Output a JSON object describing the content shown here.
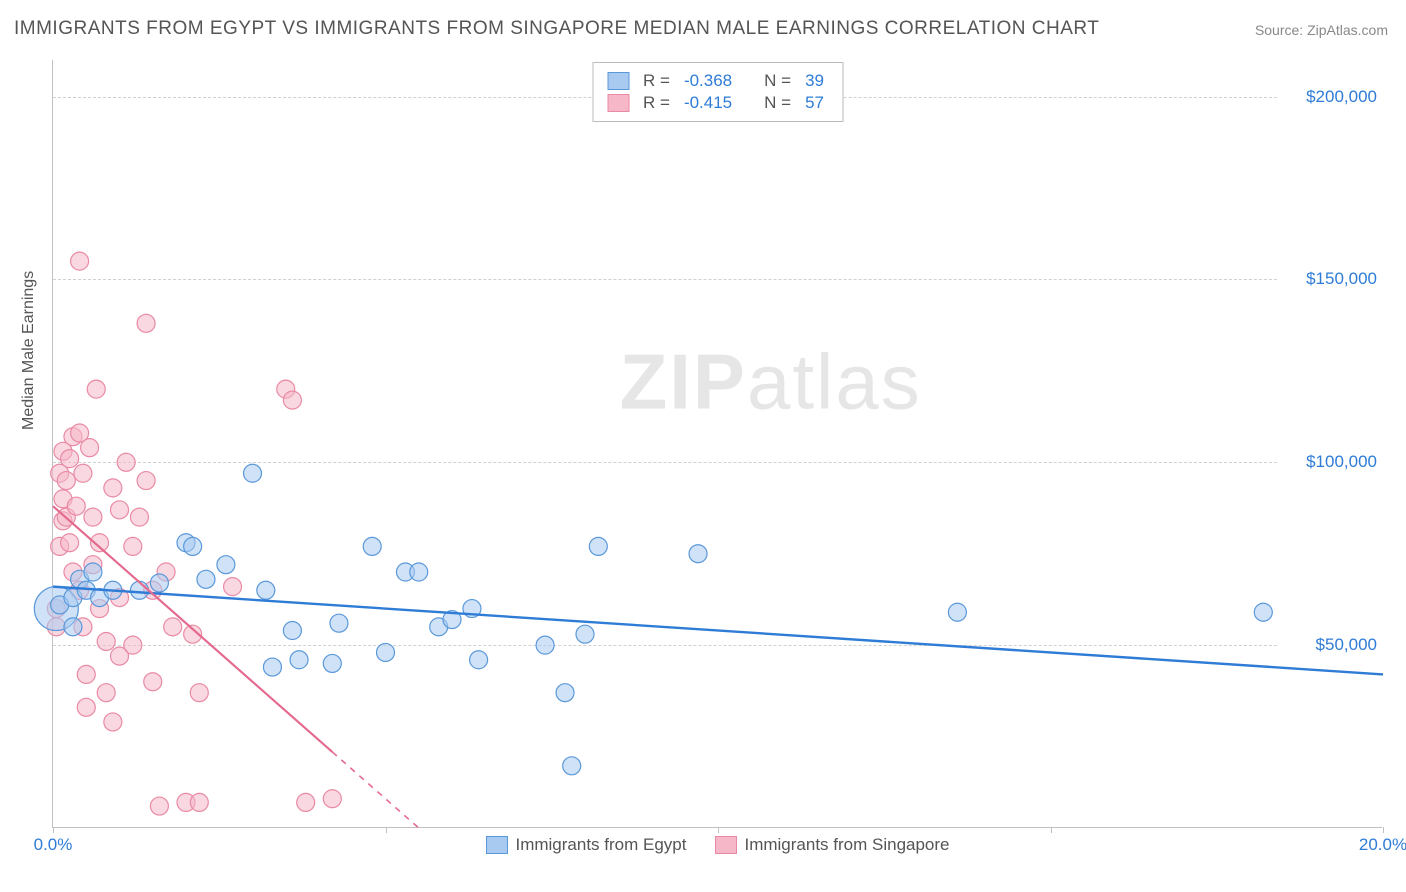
{
  "title": "IMMIGRANTS FROM EGYPT VS IMMIGRANTS FROM SINGAPORE MEDIAN MALE EARNINGS CORRELATION CHART",
  "source_label": "Source:",
  "source_name": "ZipAtlas.com",
  "ylabel": "Median Male Earnings",
  "watermark_a": "ZIP",
  "watermark_b": "atlas",
  "chart": {
    "type": "scatter",
    "xlim": [
      0,
      20
    ],
    "ylim": [
      0,
      210000
    ],
    "x_ticks": [
      0,
      5,
      10,
      15,
      20
    ],
    "x_tick_labels": [
      "0.0%",
      "",
      "",
      "",
      "20.0%"
    ],
    "y_ticks": [
      50000,
      100000,
      150000,
      200000
    ],
    "y_tick_labels": [
      "$50,000",
      "$100,000",
      "$150,000",
      "$200,000"
    ],
    "grid_color": "#d0d0d0",
    "axis_color": "#c0c0c0",
    "bg": "#ffffff",
    "series": [
      {
        "name": "Immigrants from Egypt",
        "fill": "#a8caf0",
        "stroke": "#5a98da",
        "line_color": "#2e7cd6",
        "marker_r": 9,
        "fill_opacity": 0.55,
        "R": "-0.368",
        "N": "39",
        "trend": {
          "x1": 0,
          "y1": 66000,
          "x2": 20,
          "y2": 42000
        },
        "points": [
          [
            0.1,
            61000
          ],
          [
            0.3,
            63000
          ],
          [
            0.3,
            55000
          ],
          [
            0.4,
            68000
          ],
          [
            0.5,
            65000
          ],
          [
            0.6,
            70000
          ],
          [
            0.7,
            63000
          ],
          [
            0.9,
            65000
          ],
          [
            1.3,
            65000
          ],
          [
            1.6,
            67000
          ],
          [
            2.0,
            78000
          ],
          [
            2.1,
            77000
          ],
          [
            2.3,
            68000
          ],
          [
            2.6,
            72000
          ],
          [
            3.0,
            97000
          ],
          [
            3.2,
            65000
          ],
          [
            3.3,
            44000
          ],
          [
            3.6,
            54000
          ],
          [
            3.7,
            46000
          ],
          [
            4.2,
            45000
          ],
          [
            4.3,
            56000
          ],
          [
            4.8,
            77000
          ],
          [
            5.0,
            48000
          ],
          [
            5.3,
            70000
          ],
          [
            5.5,
            70000
          ],
          [
            5.8,
            55000
          ],
          [
            6.0,
            57000
          ],
          [
            6.3,
            60000
          ],
          [
            6.4,
            46000
          ],
          [
            7.4,
            50000
          ],
          [
            7.7,
            37000
          ],
          [
            7.8,
            17000
          ],
          [
            8.0,
            53000
          ],
          [
            8.2,
            77000
          ],
          [
            9.7,
            75000
          ],
          [
            13.6,
            59000
          ],
          [
            18.2,
            59000
          ]
        ],
        "big_point": [
          0.05,
          60000,
          22
        ]
      },
      {
        "name": "Immigrants from Singapore",
        "fill": "#f6b8c8",
        "stroke": "#e98aa4",
        "line_color": "#e46a8e",
        "marker_r": 9,
        "fill_opacity": 0.55,
        "R": "-0.415",
        "N": "57",
        "trend": {
          "x1": 0,
          "y1": 88000,
          "x2": 5.5,
          "y2": 0
        },
        "trend_dash_after": 4.2,
        "points": [
          [
            0.05,
            60000
          ],
          [
            0.05,
            55000
          ],
          [
            0.1,
            77000
          ],
          [
            0.1,
            97000
          ],
          [
            0.15,
            103000
          ],
          [
            0.15,
            84000
          ],
          [
            0.15,
            90000
          ],
          [
            0.2,
            85000
          ],
          [
            0.2,
            95000
          ],
          [
            0.25,
            78000
          ],
          [
            0.25,
            101000
          ],
          [
            0.3,
            70000
          ],
          [
            0.3,
            107000
          ],
          [
            0.35,
            88000
          ],
          [
            0.4,
            155000
          ],
          [
            0.4,
            108000
          ],
          [
            0.4,
            65000
          ],
          [
            0.45,
            97000
          ],
          [
            0.45,
            55000
          ],
          [
            0.5,
            42000
          ],
          [
            0.5,
            33000
          ],
          [
            0.55,
            104000
          ],
          [
            0.6,
            72000
          ],
          [
            0.6,
            85000
          ],
          [
            0.65,
            120000
          ],
          [
            0.7,
            60000
          ],
          [
            0.7,
            78000
          ],
          [
            0.8,
            51000
          ],
          [
            0.8,
            37000
          ],
          [
            0.9,
            29000
          ],
          [
            0.9,
            93000
          ],
          [
            1.0,
            63000
          ],
          [
            1.0,
            87000
          ],
          [
            1.0,
            47000
          ],
          [
            1.1,
            100000
          ],
          [
            1.2,
            77000
          ],
          [
            1.2,
            50000
          ],
          [
            1.3,
            85000
          ],
          [
            1.4,
            95000
          ],
          [
            1.4,
            138000
          ],
          [
            1.5,
            65000
          ],
          [
            1.5,
            40000
          ],
          [
            1.6,
            6000
          ],
          [
            1.7,
            70000
          ],
          [
            1.8,
            55000
          ],
          [
            2.0,
            7000
          ],
          [
            2.1,
            53000
          ],
          [
            2.2,
            37000
          ],
          [
            2.2,
            7000
          ],
          [
            2.7,
            66000
          ],
          [
            3.5,
            120000
          ],
          [
            3.6,
            117000
          ],
          [
            3.8,
            7000
          ],
          [
            4.2,
            8000
          ]
        ]
      }
    ]
  },
  "legend_top": [
    {
      "swatch_fill": "#a8caf0",
      "swatch_stroke": "#5a98da",
      "R": "-0.368",
      "N": "39"
    },
    {
      "swatch_fill": "#f6b8c8",
      "swatch_stroke": "#e98aa4",
      "R": "-0.415",
      "N": "57"
    }
  ],
  "legend_bottom": [
    {
      "swatch_fill": "#a8caf0",
      "swatch_stroke": "#5a98da",
      "label": "Immigrants from Egypt"
    },
    {
      "swatch_fill": "#f6b8c8",
      "swatch_stroke": "#e98aa4",
      "label": "Immigrants from Singapore"
    }
  ]
}
